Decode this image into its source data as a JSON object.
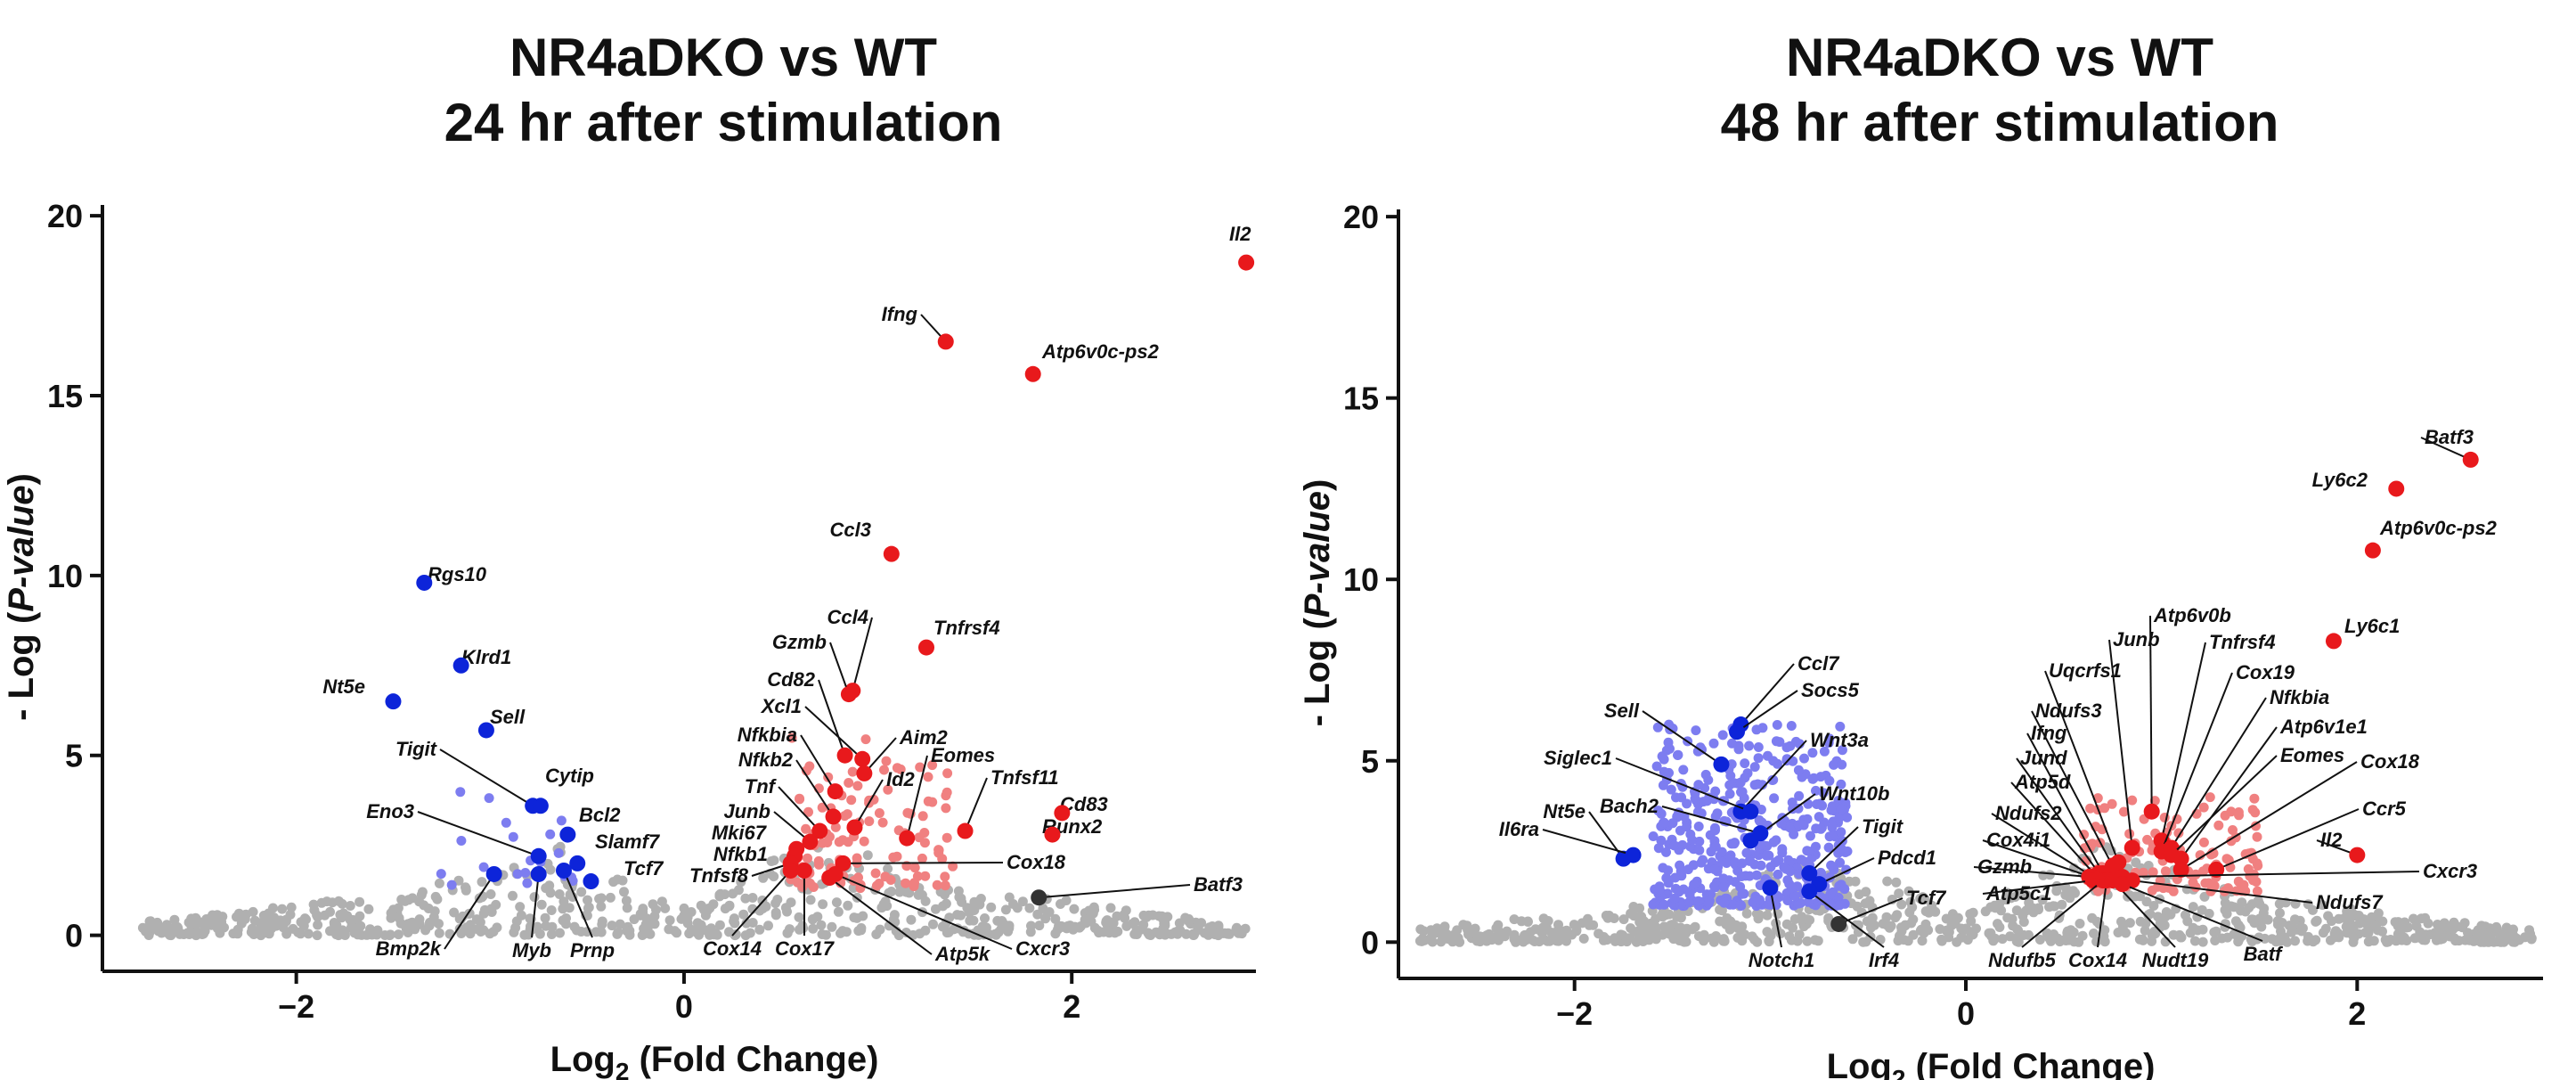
{
  "chart_data": [
    {
      "type": "scatter",
      "title_line1": "NR4aDKO vs WT",
      "title_line2": "24 hr after stimulation",
      "xlabel_prefix": "Log",
      "xlabel_sub": "2",
      "xlabel_suffix": " (Fold Change)",
      "ylabel_prefix": "- Log (",
      "ylabel_italic": "P-value",
      "ylabel_suffix": ")",
      "xlim": [
        -3.0,
        2.95
      ],
      "ylim": [
        -1.0,
        20.3
      ],
      "xticks": [
        -2,
        0,
        2
      ],
      "yticks": [
        0,
        5,
        10,
        15,
        20
      ],
      "colors": {
        "up": "#e8191c",
        "up_light": "#f08080",
        "down": "#0d24d9",
        "down_light": "#7d7df0",
        "ns": "#b0b0b0",
        "dark": "#333333"
      },
      "cloud_seed": 7,
      "clouds": [
        {
          "kind": "ns",
          "n": 700,
          "x": [
            -2.8,
            2.9
          ],
          "y": [
            0,
            1.2
          ]
        },
        {
          "kind": "up_light",
          "n": 110,
          "x": [
            0.55,
            1.4
          ],
          "y": [
            1.3,
            5.5
          ]
        },
        {
          "kind": "down_light",
          "n": 20,
          "x": [
            -1.3,
            -0.5
          ],
          "y": [
            1.4,
            4
          ]
        }
      ],
      "highlighted": [
        {
          "label": "Il2",
          "x": 2.9,
          "y": 18.7,
          "color": "up"
        },
        {
          "label": "Ifng",
          "x": 1.35,
          "y": 16.5,
          "color": "up"
        },
        {
          "label": "Atp6v0c-ps2",
          "x": 1.8,
          "y": 15.6,
          "color": "up"
        },
        {
          "label": "Ccl3",
          "x": 1.07,
          "y": 10.6,
          "color": "up"
        },
        {
          "label": "Tnfrsf4",
          "x": 1.25,
          "y": 8.0,
          "color": "up"
        },
        {
          "label": "Ccl4",
          "x": 0.87,
          "y": 6.8,
          "color": "up"
        },
        {
          "label": "Gzmb",
          "x": 0.85,
          "y": 6.7,
          "color": "up"
        },
        {
          "label": "Cd82",
          "x": 0.83,
          "y": 5.0,
          "color": "up"
        },
        {
          "label": "Xcl1",
          "x": 0.92,
          "y": 4.9,
          "color": "up"
        },
        {
          "label": "Aim2",
          "x": 0.93,
          "y": 4.5,
          "color": "up"
        },
        {
          "label": "Nfkbia",
          "x": 0.78,
          "y": 4.0,
          "color": "up"
        },
        {
          "label": "Nfkb2",
          "x": 0.77,
          "y": 3.3,
          "color": "up"
        },
        {
          "label": "Id2",
          "x": 0.88,
          "y": 3.0,
          "color": "up"
        },
        {
          "label": "Eomes",
          "x": 1.15,
          "y": 2.7,
          "color": "up"
        },
        {
          "label": "Tnfsf11",
          "x": 1.45,
          "y": 2.9,
          "color": "up"
        },
        {
          "label": "Cd83",
          "x": 1.95,
          "y": 3.4,
          "color": "up"
        },
        {
          "label": "Runx2",
          "x": 1.9,
          "y": 2.8,
          "color": "up"
        },
        {
          "label": "Tnf",
          "x": 0.7,
          "y": 2.9,
          "color": "up"
        },
        {
          "label": "Junb",
          "x": 0.65,
          "y": 2.6,
          "color": "up"
        },
        {
          "label": "Mki67",
          "x": 0.58,
          "y": 2.4,
          "color": "up"
        },
        {
          "label": "Nfkb1",
          "x": 0.57,
          "y": 2.2,
          "color": "up"
        },
        {
          "label": "Tnfsf8",
          "x": 0.55,
          "y": 2.0,
          "color": "up"
        },
        {
          "label": "Cox18",
          "x": 0.82,
          "y": 2.0,
          "color": "up"
        },
        {
          "label": "Cox14",
          "x": 0.55,
          "y": 1.8,
          "color": "up"
        },
        {
          "label": "Cox17",
          "x": 0.62,
          "y": 1.8,
          "color": "up"
        },
        {
          "label": "Atp5k",
          "x": 0.75,
          "y": 1.6,
          "color": "up"
        },
        {
          "label": "Cxcr3",
          "x": 0.78,
          "y": 1.7,
          "color": "up"
        },
        {
          "label": "Batf3",
          "x": 1.83,
          "y": 1.05,
          "color": "dark"
        },
        {
          "label": "Rgs10",
          "x": -1.34,
          "y": 9.8,
          "color": "down"
        },
        {
          "label": "Klrd1",
          "x": -1.15,
          "y": 7.5,
          "color": "down"
        },
        {
          "label": "Nt5e",
          "x": -1.5,
          "y": 6.5,
          "color": "down"
        },
        {
          "label": "Sell",
          "x": -1.02,
          "y": 5.7,
          "color": "down"
        },
        {
          "label": "Tigit",
          "x": -0.78,
          "y": 3.6,
          "color": "down"
        },
        {
          "label": "Cytip",
          "x": -0.74,
          "y": 3.6,
          "color": "down"
        },
        {
          "label": "Bcl2",
          "x": -0.6,
          "y": 2.8,
          "color": "down"
        },
        {
          "label": "Eno3",
          "x": -0.75,
          "y": 2.2,
          "color": "down"
        },
        {
          "label": "Slamf7",
          "x": -0.55,
          "y": 2.0,
          "color": "down"
        },
        {
          "label": "Tcf7",
          "x": -0.48,
          "y": 1.5,
          "color": "down"
        },
        {
          "label": "Bmp2k",
          "x": -0.98,
          "y": 1.7,
          "color": "down"
        },
        {
          "label": "Myb",
          "x": -0.75,
          "y": 1.7,
          "color": "down"
        },
        {
          "label": "Prnp",
          "x": -0.62,
          "y": 1.8,
          "color": "down"
        }
      ]
    },
    {
      "type": "scatter",
      "title_line1": "NR4aDKO vs WT",
      "title_line2": "48 hr after stimulation",
      "xlabel_prefix": "Log",
      "xlabel_sub": "2",
      "xlabel_suffix": " (Fold Change)",
      "ylabel_prefix": "- Log (",
      "ylabel_italic": "P-value",
      "ylabel_suffix": ")",
      "xlim": [
        -2.9,
        2.95
      ],
      "ylim": [
        -1.0,
        20.2
      ],
      "xticks": [
        -2,
        0,
        2
      ],
      "yticks": [
        0,
        5,
        10,
        15,
        20
      ],
      "colors": {
        "up": "#e8191c",
        "up_light": "#f08080",
        "down": "#0d24d9",
        "down_light": "#7d7df0",
        "ns": "#b0b0b0",
        "dark": "#333333"
      },
      "cloud_seed": 13,
      "clouds": [
        {
          "kind": "ns",
          "n": 800,
          "x": [
            -2.8,
            2.9
          ],
          "y": [
            0,
            1.2
          ]
        },
        {
          "kind": "down_light",
          "n": 450,
          "x": [
            -1.6,
            -0.6
          ],
          "y": [
            1.0,
            6.0
          ]
        },
        {
          "kind": "up_light",
          "n": 120,
          "x": [
            0.6,
            1.5
          ],
          "y": [
            1.4,
            4.0
          ]
        }
      ],
      "highlighted": [
        {
          "label": "Batf3",
          "x": 2.58,
          "y": 13.3,
          "color": "up"
        },
        {
          "label": "Ly6c2",
          "x": 2.2,
          "y": 12.5,
          "color": "up"
        },
        {
          "label": "Atp6v0c-ps2",
          "x": 2.08,
          "y": 10.8,
          "color": "up"
        },
        {
          "label": "Ly6c1",
          "x": 1.88,
          "y": 8.3,
          "color": "up"
        },
        {
          "label": "Atp6v0b",
          "x": 0.95,
          "y": 3.6,
          "color": "up"
        },
        {
          "label": "Junb",
          "x": 0.85,
          "y": 2.6,
          "color": "up"
        },
        {
          "label": "Tnfrsf4",
          "x": 1.0,
          "y": 2.8,
          "color": "up"
        },
        {
          "label": "Uqcrfs1",
          "x": 0.78,
          "y": 2.2,
          "color": "up"
        },
        {
          "label": "Cox19",
          "x": 1.0,
          "y": 2.5,
          "color": "up"
        },
        {
          "label": "Ndufs3",
          "x": 0.75,
          "y": 2.1,
          "color": "up"
        },
        {
          "label": "Nfkbia",
          "x": 1.05,
          "y": 2.6,
          "color": "up"
        },
        {
          "label": "Ifng",
          "x": 0.7,
          "y": 1.9,
          "color": "up"
        },
        {
          "label": "Atp6v1e1",
          "x": 1.1,
          "y": 2.3,
          "color": "up"
        },
        {
          "label": "Jund",
          "x": 0.68,
          "y": 1.9,
          "color": "up"
        },
        {
          "label": "Eomes",
          "x": 1.05,
          "y": 2.4,
          "color": "up"
        },
        {
          "label": "Atp5d",
          "x": 0.67,
          "y": 1.8,
          "color": "up"
        },
        {
          "label": "Cox18",
          "x": 1.1,
          "y": 2.0,
          "color": "up"
        },
        {
          "label": "Ndufs2",
          "x": 0.65,
          "y": 1.8,
          "color": "up"
        },
        {
          "label": "Ccr5",
          "x": 1.28,
          "y": 2.0,
          "color": "up"
        },
        {
          "label": "Cox4i1",
          "x": 0.64,
          "y": 1.8,
          "color": "up"
        },
        {
          "label": "Il2",
          "x": 2.0,
          "y": 2.4,
          "color": "up"
        },
        {
          "label": "Gzmb",
          "x": 0.63,
          "y": 1.8,
          "color": "up"
        },
        {
          "label": "Cxcr3",
          "x": 0.8,
          "y": 1.8,
          "color": "up"
        },
        {
          "label": "Atp5c1",
          "x": 0.65,
          "y": 1.7,
          "color": "up"
        },
        {
          "label": "Ndufs7",
          "x": 0.85,
          "y": 1.7,
          "color": "up"
        },
        {
          "label": "Ndufb5",
          "x": 0.7,
          "y": 1.7,
          "color": "up"
        },
        {
          "label": "Cox14",
          "x": 0.72,
          "y": 1.7,
          "color": "up"
        },
        {
          "label": "Nudt19",
          "x": 0.75,
          "y": 1.7,
          "color": "up"
        },
        {
          "label": "Batf",
          "x": 0.8,
          "y": 1.6,
          "color": "up"
        },
        {
          "label": "Ccl7",
          "x": -1.15,
          "y": 6.0,
          "color": "down"
        },
        {
          "label": "Socs5",
          "x": -1.17,
          "y": 5.8,
          "color": "down"
        },
        {
          "label": "Sell",
          "x": -1.25,
          "y": 4.9,
          "color": "down"
        },
        {
          "label": "Wnt3a",
          "x": -1.15,
          "y": 3.6,
          "color": "down"
        },
        {
          "label": "Siglec1",
          "x": -1.1,
          "y": 3.6,
          "color": "down"
        },
        {
          "label": "Wnt10b",
          "x": -1.1,
          "y": 2.8,
          "color": "down"
        },
        {
          "label": "Bach2",
          "x": -1.05,
          "y": 3.0,
          "color": "down"
        },
        {
          "label": "Nt5e",
          "x": -1.75,
          "y": 2.3,
          "color": "down"
        },
        {
          "label": "Il6ra",
          "x": -1.7,
          "y": 2.4,
          "color": "down"
        },
        {
          "label": "Tigit",
          "x": -0.8,
          "y": 1.9,
          "color": "down"
        },
        {
          "label": "Pdcd1",
          "x": -0.75,
          "y": 1.6,
          "color": "down"
        },
        {
          "label": "Tcf7",
          "x": -0.65,
          "y": 0.5,
          "color": "dark"
        },
        {
          "label": "Notch1",
          "x": -1.0,
          "y": 1.5,
          "color": "down"
        },
        {
          "label": "Irf4",
          "x": -0.8,
          "y": 1.4,
          "color": "down"
        }
      ]
    }
  ]
}
